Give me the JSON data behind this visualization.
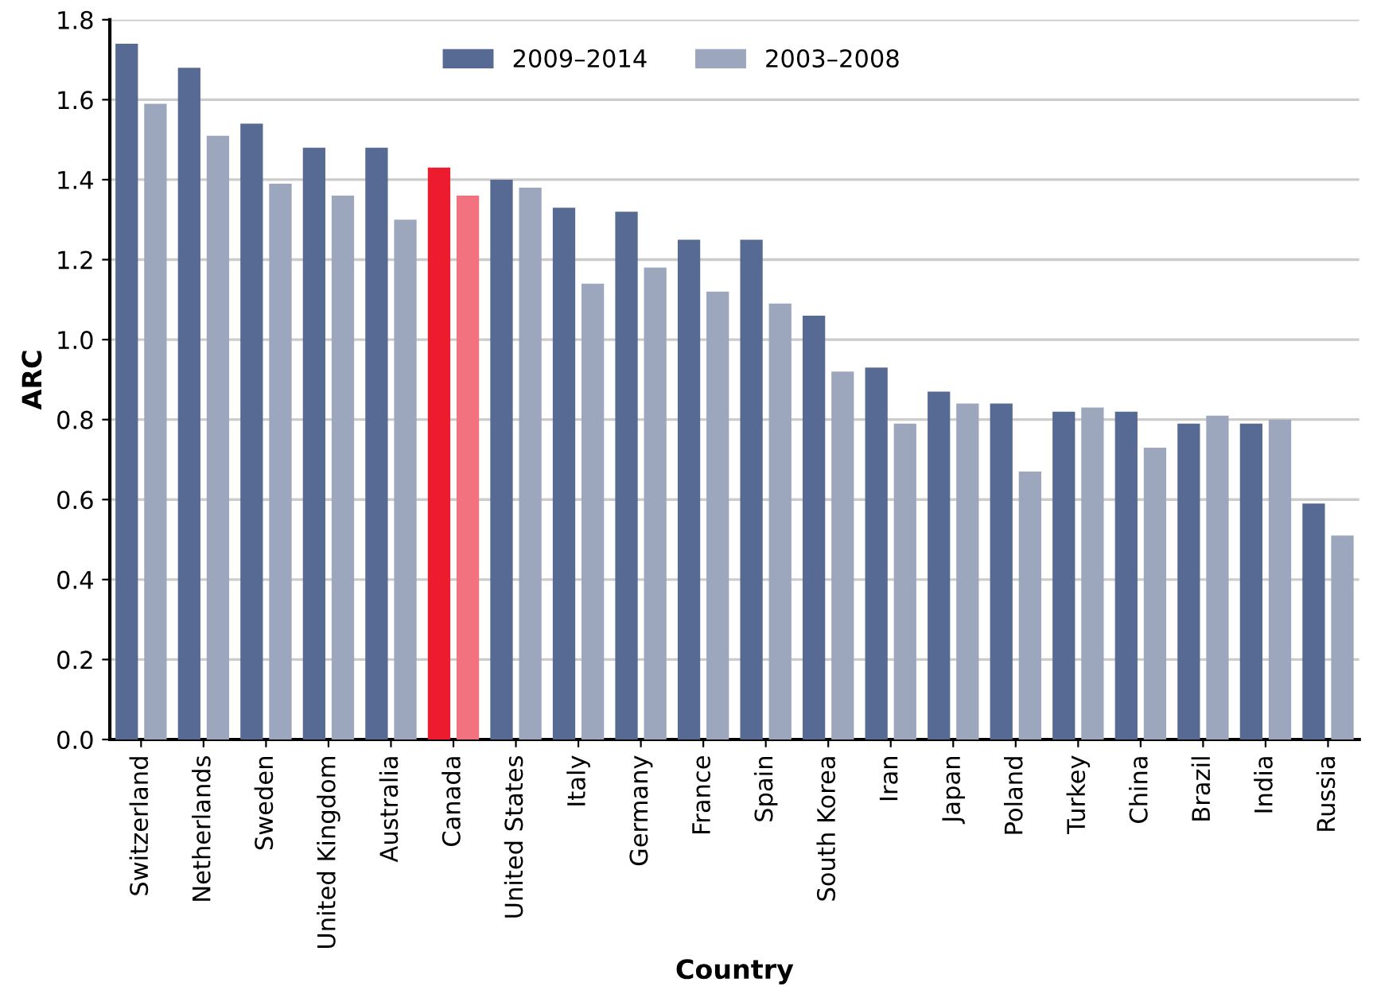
{
  "chart_data": {
    "type": "bar",
    "xlabel": "Country",
    "ylabel": "ARC",
    "categories": [
      "Switzerland",
      "Netherlands",
      "Sweden",
      "United Kingdom",
      "Australia",
      "Canada",
      "United States",
      "Italy",
      "Germany",
      "France",
      "Spain",
      "South Korea",
      "Iran",
      "Japan",
      "Poland",
      "Turkey",
      "China",
      "Brazil",
      "India",
      "Russia"
    ],
    "series": [
      {
        "name": "2009–2014",
        "color": "#576a93",
        "colors": [
          "#576a93",
          "#576a93",
          "#576a93",
          "#576a93",
          "#576a93",
          "#ec1c2e",
          "#576a93",
          "#576a93",
          "#576a93",
          "#576a93",
          "#576a93",
          "#576a93",
          "#576a93",
          "#576a93",
          "#576a93",
          "#576a93",
          "#576a93",
          "#576a93",
          "#576a93",
          "#576a93"
        ],
        "values": [
          1.74,
          1.68,
          1.54,
          1.48,
          1.48,
          1.43,
          1.4,
          1.33,
          1.32,
          1.25,
          1.25,
          1.06,
          0.93,
          0.87,
          0.84,
          0.82,
          0.82,
          0.79,
          0.79,
          0.59
        ]
      },
      {
        "name": "2003–2008",
        "color": "#9ca7be",
        "colors": [
          "#9ca7be",
          "#9ca7be",
          "#9ca7be",
          "#9ca7be",
          "#9ca7be",
          "#f2727f",
          "#9ca7be",
          "#9ca7be",
          "#9ca7be",
          "#9ca7be",
          "#9ca7be",
          "#9ca7be",
          "#9ca7be",
          "#9ca7be",
          "#9ca7be",
          "#9ca7be",
          "#9ca7be",
          "#9ca7be",
          "#9ca7be",
          "#9ca7be"
        ],
        "values": [
          1.59,
          1.51,
          1.39,
          1.36,
          1.3,
          1.36,
          1.38,
          1.14,
          1.18,
          1.12,
          1.09,
          0.92,
          0.79,
          0.84,
          0.67,
          0.83,
          0.73,
          0.81,
          0.8,
          0.51
        ]
      }
    ],
    "ylim": [
      0,
      1.8
    ],
    "yticks": [
      {
        "value": 0,
        "label": "0.0"
      },
      {
        "value": 0.2,
        "label": "0.2"
      },
      {
        "value": 0.4,
        "label": "0.4"
      },
      {
        "value": 0.6,
        "label": "0.6"
      },
      {
        "value": 0.8,
        "label": "0.8"
      },
      {
        "value": 1.0,
        "label": "1.0"
      },
      {
        "value": 1.2,
        "label": "1.2"
      },
      {
        "value": 1.4,
        "label": "1.4"
      },
      {
        "value": 1.6,
        "label": "1.6"
      },
      {
        "value": 1.8,
        "label": "1.8"
      }
    ],
    "grid": "y",
    "legend": "top"
  }
}
